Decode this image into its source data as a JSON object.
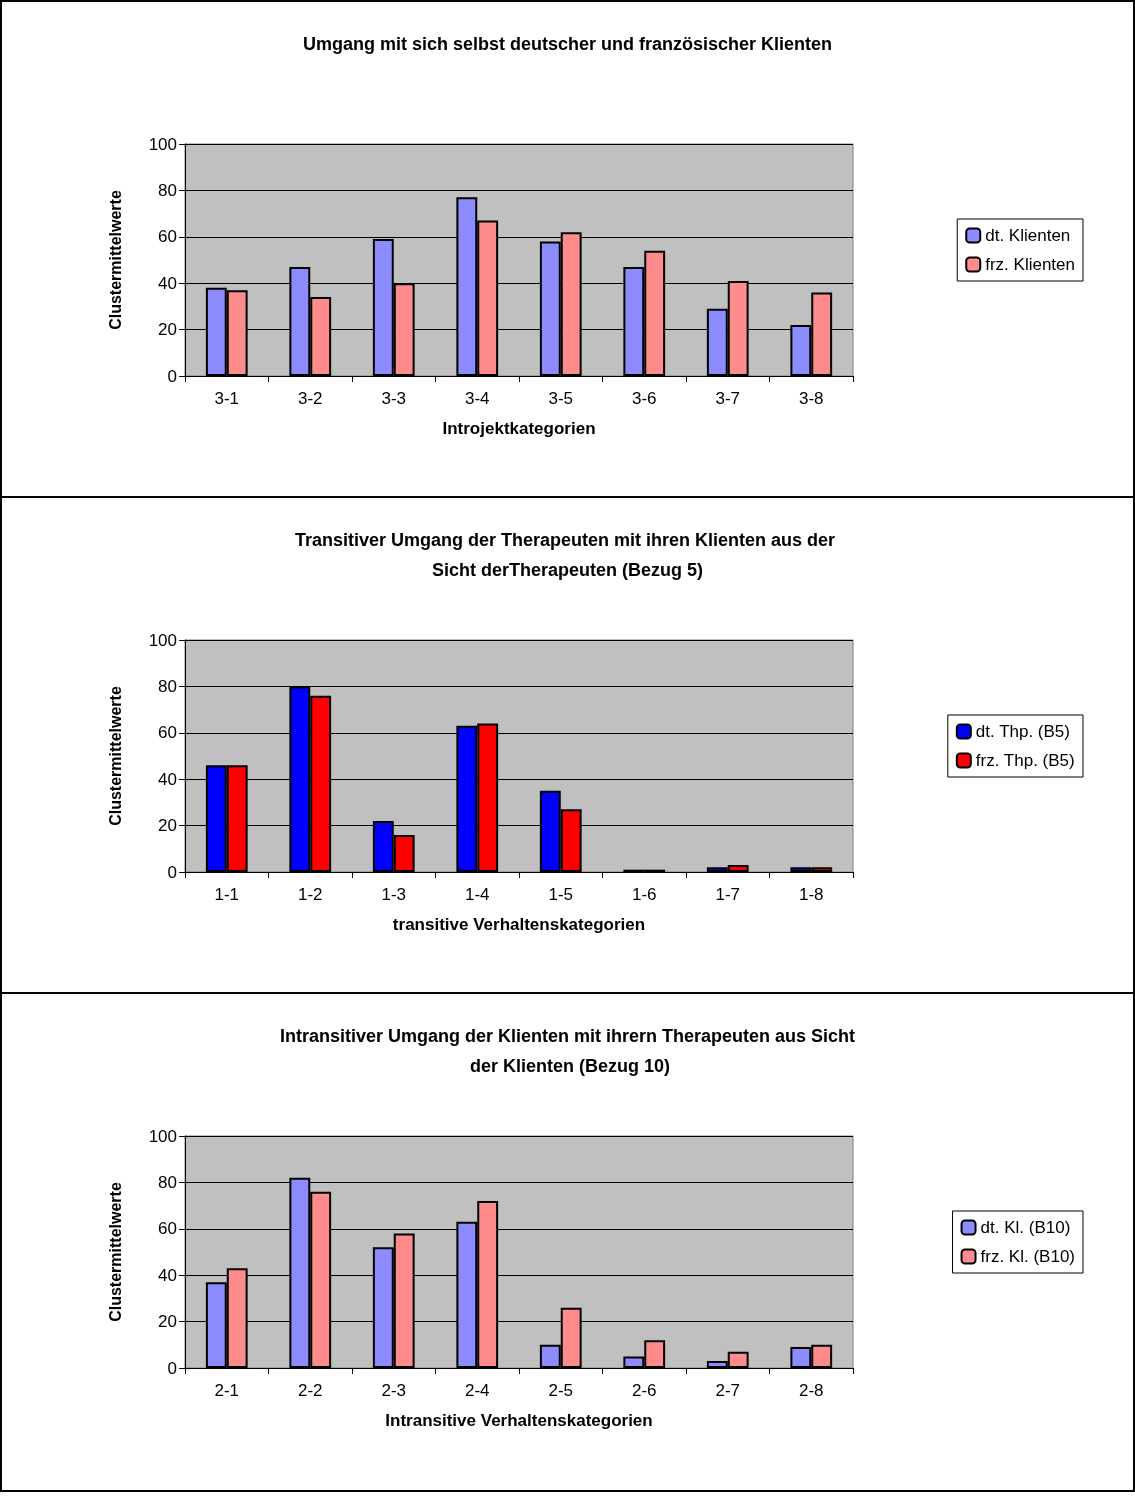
{
  "chart_data": [
    {
      "type": "bar",
      "title": "Umgang mit sich selbst deutscher und französischer Klienten",
      "xlabel": "Introjektkategorien",
      "ylabel": "Clustermittelwerte",
      "categories": [
        "3-1",
        "3-2",
        "3-3",
        "3-4",
        "3-5",
        "3-6",
        "3-7",
        "3-8"
      ],
      "series": [
        {
          "name": "dt. Klienten",
          "color": "#8c8cff",
          "values": [
            38,
            47,
            59,
            77,
            58,
            47,
            29,
            22
          ]
        },
        {
          "name": "frz. Klienten",
          "color": "#ff8c8c",
          "values": [
            37,
            34,
            40,
            67,
            62,
            54,
            41,
            36
          ]
        }
      ],
      "ylim": [
        0,
        100
      ],
      "yticks": [
        0,
        20,
        40,
        60,
        80,
        100
      ],
      "grid": "y",
      "legend": "right"
    },
    {
      "type": "bar",
      "title": "Transitiver Umgang der Therapeuten mit ihren Klienten aus der Sicht derTherapeuten (Bezug 5)",
      "xlabel": "transitive Verhaltenskategorien",
      "ylabel": "Clustermittelwerte",
      "categories": [
        "1-1",
        "1-2",
        "1-3",
        "1-4",
        "1-5",
        "1-6",
        "1-7",
        "1-8"
      ],
      "series": [
        {
          "name": "dt. Thp. (B5)",
          "color": "#0000ff",
          "values": [
            46,
            80,
            22,
            63,
            35,
            1,
            2,
            2
          ]
        },
        {
          "name": "frz. Thp. (B5)",
          "color": "#ff0000",
          "values": [
            46,
            76,
            16,
            64,
            27,
            1,
            3,
            2
          ]
        }
      ],
      "ylim": [
        0,
        100
      ],
      "yticks": [
        0,
        20,
        40,
        60,
        80,
        100
      ],
      "grid": "y",
      "legend": "right"
    },
    {
      "type": "bar",
      "title": "Intransitiver Umgang der Klienten mit ihrern Therapeuten aus Sicht der Klienten (Bezug 10)",
      "xlabel": "Intransitive Verhaltenskategorien",
      "ylabel": "Clustermittelwerte",
      "categories": [
        "2-1",
        "2-2",
        "2-3",
        "2-4",
        "2-5",
        "2-6",
        "2-7",
        "2-8"
      ],
      "series": [
        {
          "name": "dt. Kl. (B10)",
          "color": "#8c8cff",
          "values": [
            37,
            82,
            52,
            63,
            10,
            5,
            3,
            9
          ]
        },
        {
          "name": "frz. Kl. (B10)",
          "color": "#ff8c8c",
          "values": [
            43,
            76,
            58,
            72,
            26,
            12,
            7,
            10
          ]
        }
      ],
      "ylim": [
        0,
        100
      ],
      "yticks": [
        0,
        20,
        40,
        60,
        80,
        100
      ],
      "grid": "y",
      "legend": "right"
    }
  ]
}
